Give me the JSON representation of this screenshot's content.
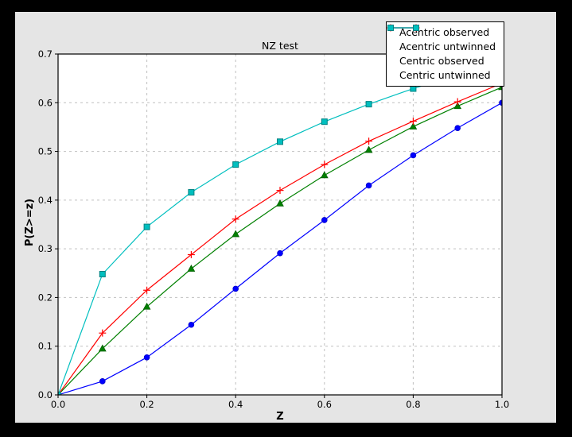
{
  "figure": {
    "title": "NZ test",
    "xlabel": "Z",
    "ylabel": "P(Z>=z)"
  },
  "chart_data": {
    "type": "line",
    "title": "NZ test",
    "xlabel": "Z",
    "ylabel": "P(Z>=z)",
    "xlim": [
      0.0,
      1.0
    ],
    "ylim": [
      0.0,
      0.7
    ],
    "grid": true,
    "legend_position": "upper right",
    "xticks": [
      0.0,
      0.2,
      0.4,
      0.6,
      0.8,
      1.0
    ],
    "xtick_labels": [
      "0.0",
      "0.2",
      "0.4",
      "0.6",
      "0.8",
      "1.0"
    ],
    "yticks": [
      0.0,
      0.1,
      0.2,
      0.3,
      0.4,
      0.5,
      0.6,
      0.7
    ],
    "ytick_labels": [
      "0.0",
      "0.1",
      "0.2",
      "0.3",
      "0.4",
      "0.5",
      "0.6",
      "0.7"
    ],
    "x": [
      0.0,
      0.1,
      0.2,
      0.3,
      0.4,
      0.5,
      0.6,
      0.7,
      0.8,
      0.9,
      1.0
    ],
    "series": [
      {
        "name": "Acentric observed",
        "color": "#0000ff",
        "marker": "circle",
        "marker_edge": "#0000cc",
        "values": [
          0.0,
          0.028,
          0.077,
          0.144,
          0.218,
          0.291,
          0.359,
          0.43,
          0.492,
          0.548,
          0.6
        ]
      },
      {
        "name": "Acentric untwinned",
        "color": "#008000",
        "marker": "triangle",
        "marker_edge": "#006000",
        "values": [
          0.0,
          0.095,
          0.181,
          0.259,
          0.33,
          0.393,
          0.451,
          0.503,
          0.551,
          0.593,
          0.632
        ]
      },
      {
        "name": "Centric observed",
        "color": "#ff0000",
        "marker": "plus",
        "marker_edge": "#ff0000",
        "values": [
          0.0,
          0.127,
          0.215,
          0.288,
          0.361,
          0.42,
          0.473,
          0.521,
          0.562,
          0.602,
          0.64
        ]
      },
      {
        "name": "Centric untwinned",
        "color": "#00bfbf",
        "marker": "square",
        "marker_edge": "#008080",
        "values": [
          0.0,
          0.248,
          0.345,
          0.416,
          0.473,
          0.52,
          0.561,
          0.597,
          0.629,
          0.657,
          0.683
        ]
      }
    ]
  },
  "colors": {
    "canvas_bg": "#000000",
    "figure_bg": "#e5e5e5",
    "plot_bg": "#ffffff",
    "grid": "#c0c0c0",
    "spine": "#000000",
    "tick_text": "#000000",
    "legend_bg": "#ffffff",
    "legend_border": "#000000"
  }
}
